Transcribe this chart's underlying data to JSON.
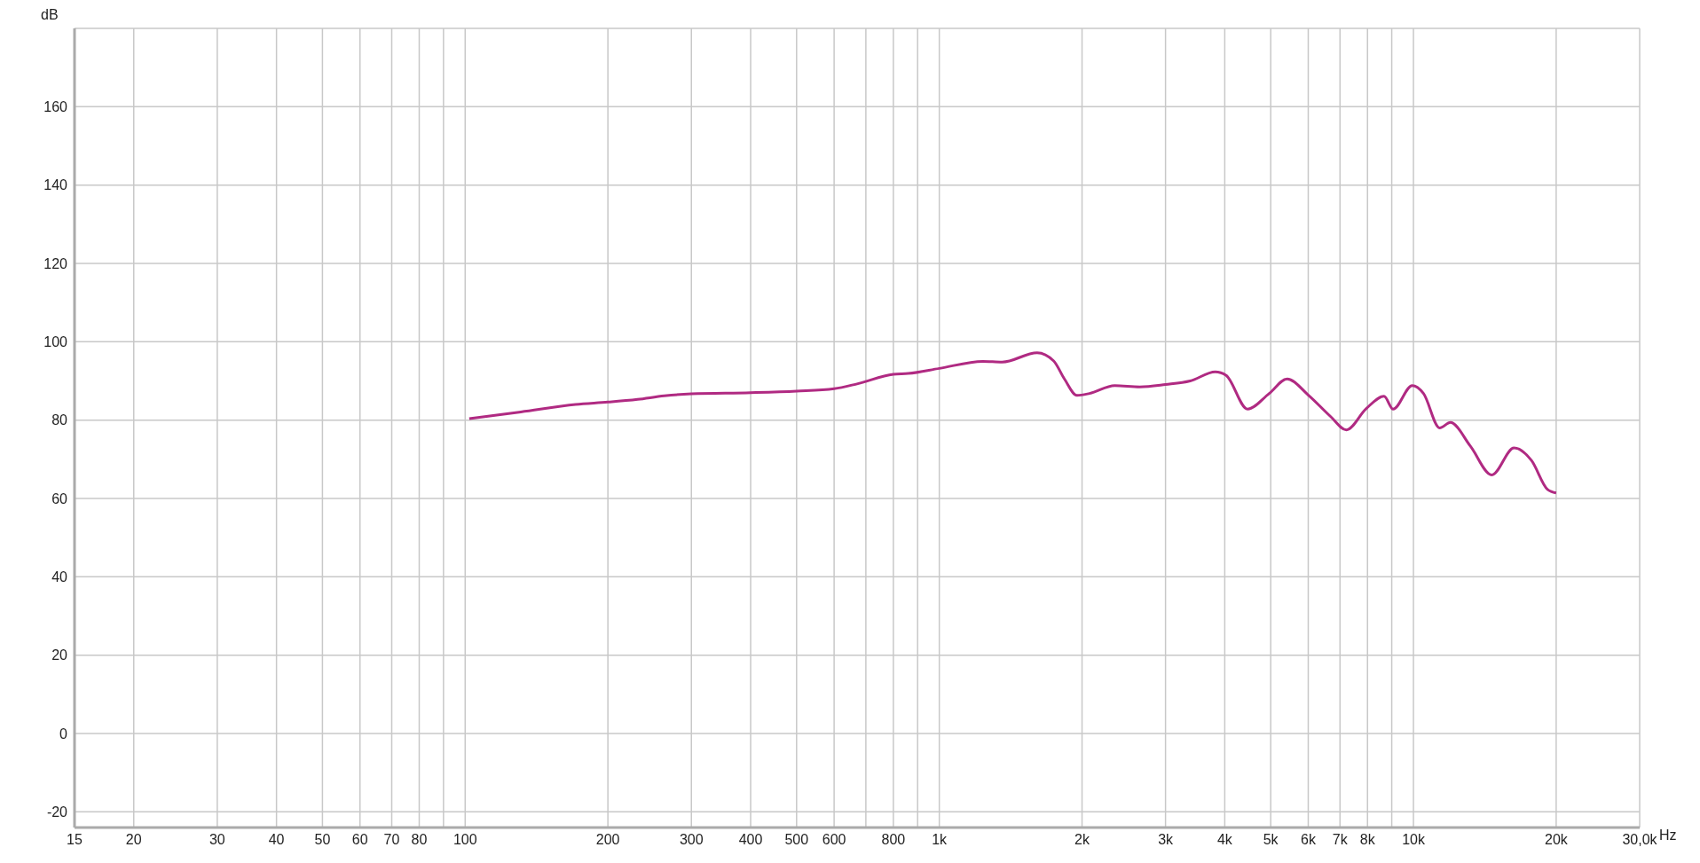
{
  "chart_data": {
    "type": "line",
    "xlabel": "Hz",
    "ylabel": "dB",
    "log": "x",
    "grid": true,
    "legend": false,
    "marker": "none",
    "line_style": "solid",
    "xlim": [
      15,
      30000
    ],
    "ylim": [
      -24,
      180
    ],
    "xticks": [
      15,
      20,
      30,
      40,
      50,
      60,
      70,
      80,
      {
        "value": 90,
        "label": null
      },
      100,
      200,
      300,
      400,
      500,
      600,
      {
        "value": 700,
        "label": null
      },
      800,
      {
        "value": 900,
        "label": null
      },
      {
        "value": 1000,
        "label": "1k"
      },
      {
        "value": 2000,
        "label": "2k"
      },
      {
        "value": 3000,
        "label": "3k"
      },
      {
        "value": 4000,
        "label": "4k"
      },
      {
        "value": 5000,
        "label": "5k"
      },
      {
        "value": 6000,
        "label": "6k"
      },
      {
        "value": 7000,
        "label": "7k"
      },
      {
        "value": 8000,
        "label": "8k"
      },
      {
        "value": 9000,
        "label": null
      },
      {
        "value": 10000,
        "label": "10k"
      },
      {
        "value": 20000,
        "label": "20k"
      },
      {
        "value": 30000,
        "label": "30,0k"
      }
    ],
    "yticks": [
      -20,
      0,
      20,
      40,
      60,
      80,
      100,
      120,
      140,
      160
    ],
    "series": [
      {
        "color": "#b02a82",
        "x": [
          102,
          131,
          171,
          200,
          231,
          263,
          300,
          400,
          500,
          600,
          673,
          800,
          860,
          1000,
          1235,
          1357,
          1608,
          1743,
          1836,
          1952,
          2074,
          2344,
          2648,
          3000,
          3381,
          3820,
          4027,
          4468,
          4964,
          5415,
          6012,
          6676,
          7221,
          7945,
          8670,
          9060,
          9940,
          10500,
          11360,
          11970,
          13180,
          14630,
          16300,
          17740,
          19180,
          20000
        ],
        "values": [
          80.4,
          82.1,
          84.0,
          84.6,
          85.3,
          86.2,
          86.7,
          87.0,
          87.4,
          88.0,
          89.3,
          91.7,
          91.9,
          93.2,
          95.0,
          94.8,
          97.2,
          95.1,
          90.5,
          86.3,
          86.8,
          88.8,
          88.5,
          89.1,
          90.0,
          92.3,
          91.4,
          82.8,
          86.8,
          90.5,
          86.3,
          81.0,
          77.5,
          82.9,
          86.1,
          82.8,
          88.8,
          86.8,
          78.0,
          79.4,
          73.4,
          66.0,
          72.9,
          69.7,
          62.3,
          61.4
        ]
      }
    ]
  }
}
